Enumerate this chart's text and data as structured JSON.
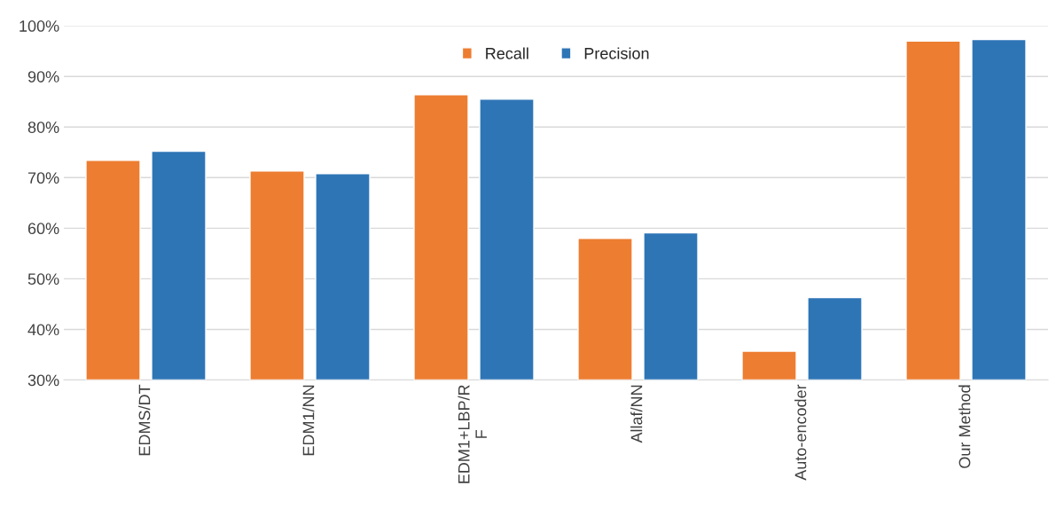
{
  "chart_data": {
    "type": "bar",
    "categories": [
      "EDMS/DT",
      "EDM1/NN",
      "EDM1+LBP/R\nF",
      "Allaf/NN",
      "Auto-encoder",
      "Our Method"
    ],
    "series": [
      {
        "name": "Recall",
        "color": "#ed7d31",
        "values": [
          73.4,
          71.3,
          86.4,
          58.0,
          35.7,
          97.0
        ]
      },
      {
        "name": "Precision",
        "color": "#2e75b6",
        "values": [
          75.2,
          70.8,
          85.5,
          59.1,
          46.3,
          97.3
        ]
      }
    ],
    "ylim": [
      30,
      100
    ],
    "yticks": [
      {
        "value": 30,
        "label": "30%"
      },
      {
        "value": 40,
        "label": "40%"
      },
      {
        "value": 50,
        "label": "50%"
      },
      {
        "value": 60,
        "label": "60%"
      },
      {
        "value": 70,
        "label": "70%"
      },
      {
        "value": 80,
        "label": "80%"
      },
      {
        "value": 90,
        "label": "90%"
      },
      {
        "value": 100,
        "label": "100%"
      }
    ],
    "grid": "y",
    "legend": "top"
  }
}
